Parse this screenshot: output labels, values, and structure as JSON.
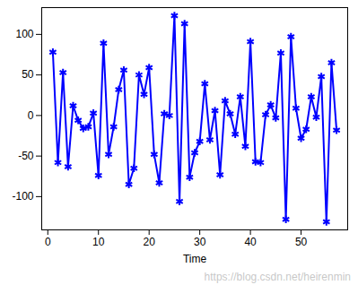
{
  "chart_data": {
    "type": "line",
    "x_label": "Time",
    "x": [
      1,
      2,
      3,
      4,
      5,
      6,
      7,
      8,
      9,
      10,
      11,
      12,
      13,
      14,
      15,
      16,
      17,
      18,
      19,
      20,
      21,
      22,
      23,
      24,
      25,
      26,
      27,
      28,
      29,
      30,
      31,
      32,
      33,
      34,
      35,
      36,
      37,
      38,
      39,
      40,
      41,
      42,
      43,
      44,
      45,
      46,
      47,
      48,
      49,
      50,
      51,
      52,
      53,
      54,
      55,
      56,
      57
    ],
    "values": [
      78,
      -58,
      53,
      -63,
      12,
      -6,
      -16,
      -14,
      3,
      -74,
      89,
      -48,
      -14,
      32,
      56,
      -85,
      -65,
      50,
      26,
      59,
      -48,
      -83,
      2,
      0,
      123,
      -106,
      113,
      -76,
      -46,
      -32,
      39,
      -30,
      6,
      -73,
      18,
      2,
      -23,
      23,
      -38,
      91,
      -57,
      -58,
      1,
      13,
      -3,
      77,
      -128,
      97,
      9,
      -28,
      -17,
      23,
      -2,
      48,
      -131,
      65,
      -18
    ],
    "color": "#0000ff",
    "marker": "asterisk",
    "xlim": [
      -1.2,
      59.2
    ],
    "ylim": [
      -141,
      133
    ],
    "xticks": [
      0,
      10,
      20,
      30,
      40,
      50
    ],
    "yticks": [
      -100,
      -50,
      0,
      50,
      100
    ],
    "annotations": [
      "https://blog.csdn.net/heirenmin"
    ]
  }
}
